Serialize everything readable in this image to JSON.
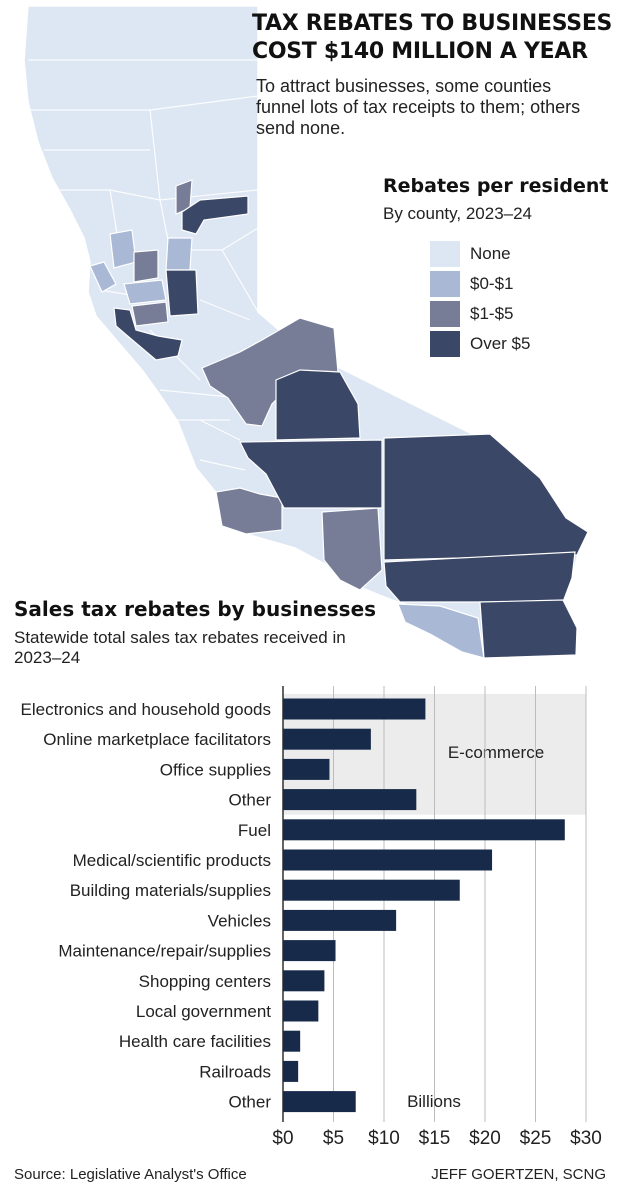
{
  "header": {
    "headline_line1": "TAX REBATES TO BUSINESSES",
    "headline_line2": "COST $140 MILLION A YEAR",
    "intro": "To attract businesses, some counties funnel lots of tax receipts to them; others send none."
  },
  "map": {
    "legend_title": "Rebates per resident",
    "legend_subtitle": "By county, 2023–24",
    "legend": [
      {
        "label": "None",
        "color": "#dde6f3"
      },
      {
        "label": "$0-$1",
        "color": "#a9b8d4"
      },
      {
        "label": "$1-$5",
        "color": "#777d97"
      },
      {
        "label": "Over $5",
        "color": "#3b4766"
      }
    ]
  },
  "section": {
    "title": "Sales tax rebates by businesses",
    "subtitle": "Statewide total sales tax rebates received in 2023–24"
  },
  "chart_data": {
    "type": "bar",
    "orientation": "horizontal",
    "categories": [
      "Electronics and household goods",
      "Online marketplace facilitators",
      "Office supplies",
      "Other",
      "Fuel",
      "Medical/scientific products",
      "Building materials/supplies",
      "Vehicles",
      "Maintenance/repair/supplies",
      "Shopping centers",
      "Local government",
      "Health care facilities",
      "Railroads",
      "Other"
    ],
    "values": [
      14.1,
      8.7,
      4.6,
      13.2,
      27.9,
      20.7,
      17.5,
      11.2,
      5.2,
      4.1,
      3.5,
      1.7,
      1.5,
      7.2
    ],
    "unit_label": "Billions",
    "xlim": [
      0,
      30
    ],
    "xticks": [
      "$0",
      "$5",
      "$10",
      "$15",
      "$20",
      "$25",
      "$30"
    ],
    "highlight": {
      "label": "E-commerce",
      "from_index": 0,
      "to_index": 3,
      "color": "#ececec"
    },
    "bar_color": "#172a4a",
    "grid": true
  },
  "footer": {
    "source": "Source: Legislative Analyst's Office",
    "credit": "JEFF GOERTZEN, SCNG"
  }
}
